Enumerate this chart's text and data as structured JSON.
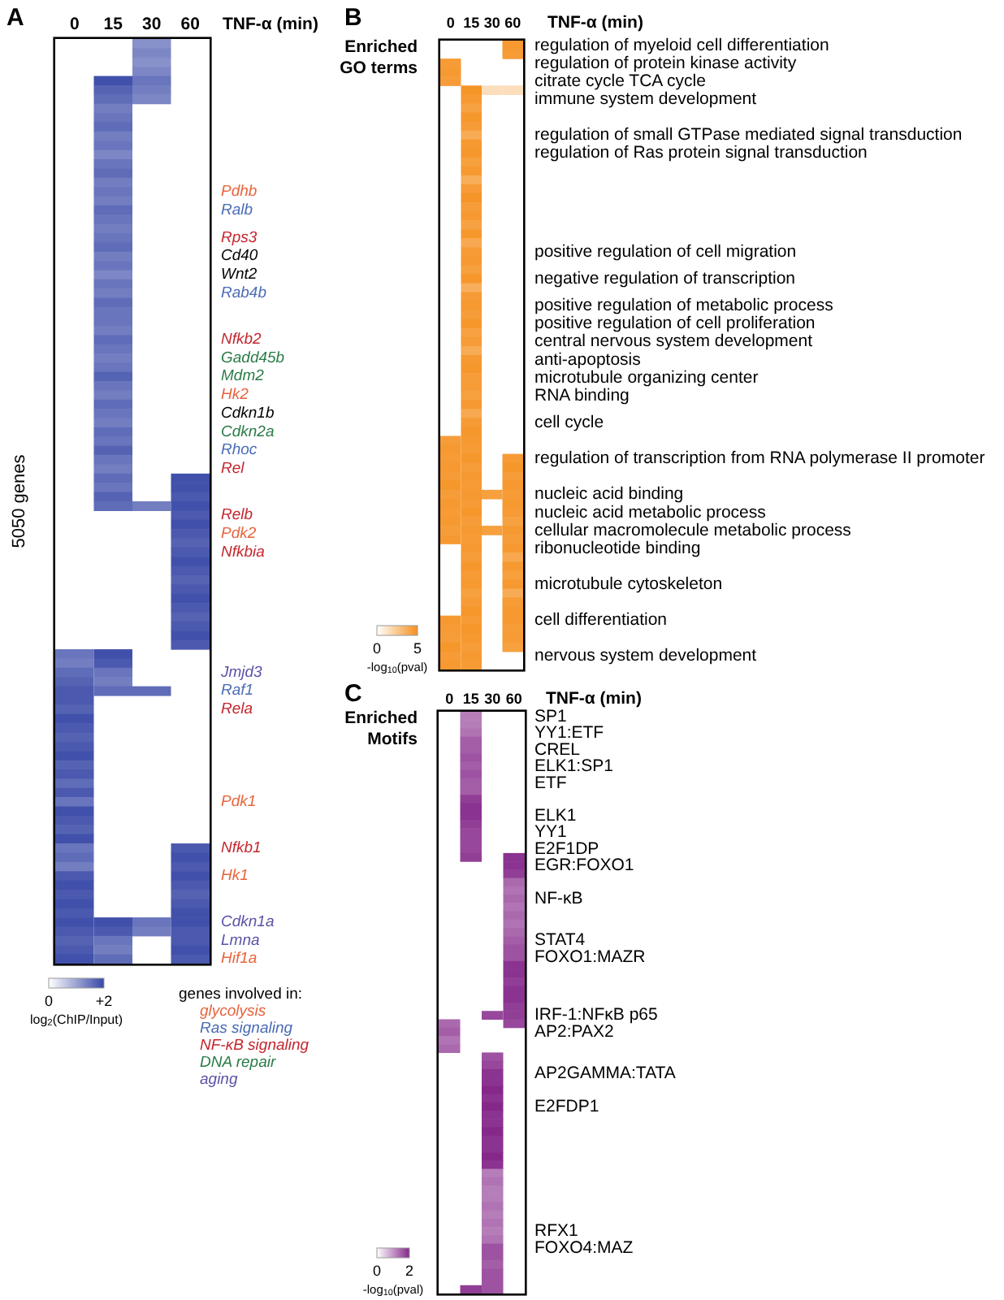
{
  "chart_data": [
    {
      "type": "heatmap",
      "title": "A",
      "xlabel": "TNF-α (min)",
      "ylabel": "5050 genes",
      "categories": [
        "0",
        "15",
        "30",
        "60"
      ],
      "y_categories": [
        null,
        null,
        null,
        null,
        null,
        null,
        null,
        null,
        null,
        null,
        null,
        null,
        null,
        null,
        null,
        null,
        "Pdhb",
        null,
        "Ralb",
        null,
        null,
        "Rps3",
        null,
        "Cd40",
        null,
        "Wnt2",
        null,
        "Rab4b",
        null,
        null,
        null,
        null,
        "Nfkb2",
        null,
        "Gadd45b",
        null,
        "Mdm2",
        null,
        "Hk2",
        null,
        "Cdkn1b",
        null,
        "Cdkn2a",
        null,
        "Rhoc",
        null,
        "Rel",
        null,
        null,
        null,
        null,
        "Relb",
        null,
        "Pdk2",
        null,
        "Nfkbia",
        null,
        null,
        null,
        null,
        null,
        null,
        null,
        null,
        null,
        null,
        null,
        null,
        "Jmjd3",
        null,
        "Raf1",
        null,
        "Rela",
        null,
        null,
        null,
        null,
        null,
        null,
        null,
        null,
        null,
        "Pdk1",
        null,
        null,
        null,
        null,
        "Nfkb1",
        null,
        null,
        "Hk1",
        null,
        null,
        null,
        null,
        "Cdkn1a",
        null,
        "Lmna",
        null,
        "Hif1a"
      ],
      "colors": [
        null,
        null,
        null,
        null,
        null,
        null,
        null,
        null,
        null,
        null,
        null,
        null,
        null,
        null,
        null,
        null,
        "#e8643c",
        null,
        "#4a6bb5",
        null,
        null,
        "#c4262e",
        null,
        "#000000",
        null,
        "#000000",
        null,
        "#4a6bb5",
        null,
        null,
        null,
        null,
        "#c4262e",
        null,
        "#2a7b48",
        null,
        "#2a7b48",
        null,
        "#e8643c",
        null,
        "#000000",
        null,
        "#2a7b48",
        null,
        "#4a6bb5",
        null,
        "#c4262e",
        null,
        null,
        null,
        null,
        "#c4262e",
        null,
        "#e8643c",
        null,
        "#c4262e",
        null,
        null,
        null,
        null,
        null,
        null,
        null,
        null,
        null,
        null,
        null,
        null,
        "#5a52a6",
        null,
        "#4a6bb5",
        null,
        "#c4262e",
        null,
        null,
        null,
        null,
        null,
        null,
        null,
        null,
        null,
        "#e8643c",
        null,
        null,
        null,
        null,
        "#c4262e",
        null,
        null,
        "#e8643c",
        null,
        null,
        null,
        null,
        "#5a52a6",
        null,
        "#5a52a6",
        null,
        "#e8643c"
      ],
      "cells": [
        [
          null,
          null,
          1.2,
          null
        ],
        [
          null,
          null,
          1.3,
          null
        ],
        [
          null,
          null,
          1.2,
          null
        ],
        [
          null,
          null,
          1.3,
          null
        ],
        [
          null,
          1.9,
          1.5,
          null
        ],
        [
          null,
          1.7,
          1.4,
          null
        ],
        [
          null,
          1.6,
          1.3,
          null
        ],
        [
          null,
          1.4,
          null,
          null
        ],
        [
          null,
          1.5,
          null,
          null
        ],
        [
          null,
          1.6,
          null,
          null
        ],
        [
          null,
          1.4,
          null,
          null
        ],
        [
          null,
          1.5,
          null,
          null
        ],
        [
          null,
          1.3,
          null,
          null
        ],
        [
          null,
          1.5,
          null,
          null
        ],
        [
          null,
          1.6,
          null,
          null
        ],
        [
          null,
          1.4,
          null,
          null
        ],
        [
          null,
          1.5,
          null,
          null
        ],
        [
          null,
          1.4,
          null,
          null
        ],
        [
          null,
          1.6,
          null,
          null
        ],
        [
          null,
          1.5,
          null,
          null
        ],
        [
          null,
          1.4,
          null,
          null
        ],
        [
          null,
          1.5,
          null,
          null
        ],
        [
          null,
          1.6,
          null,
          null
        ],
        [
          null,
          1.4,
          null,
          null
        ],
        [
          null,
          1.5,
          null,
          null
        ],
        [
          null,
          1.3,
          null,
          null
        ],
        [
          null,
          1.5,
          null,
          null
        ],
        [
          null,
          1.4,
          null,
          null
        ],
        [
          null,
          1.6,
          null,
          null
        ],
        [
          null,
          1.5,
          null,
          null
        ],
        [
          null,
          1.5,
          null,
          null
        ],
        [
          null,
          1.4,
          null,
          null
        ],
        [
          null,
          1.6,
          null,
          null
        ],
        [
          null,
          1.5,
          null,
          null
        ],
        [
          null,
          1.4,
          null,
          null
        ],
        [
          null,
          1.5,
          null,
          null
        ],
        [
          null,
          1.7,
          null,
          null
        ],
        [
          null,
          1.5,
          null,
          null
        ],
        [
          null,
          1.4,
          null,
          null
        ],
        [
          null,
          1.6,
          null,
          null
        ],
        [
          null,
          1.5,
          null,
          null
        ],
        [
          null,
          1.4,
          null,
          null
        ],
        [
          null,
          1.6,
          null,
          null
        ],
        [
          null,
          1.5,
          null,
          null
        ],
        [
          null,
          1.7,
          null,
          null
        ],
        [
          null,
          1.5,
          null,
          null
        ],
        [
          null,
          1.4,
          null,
          null
        ],
        [
          null,
          1.6,
          null,
          1.9
        ],
        [
          null,
          1.5,
          null,
          1.9
        ],
        [
          null,
          1.7,
          null,
          1.8
        ],
        [
          null,
          1.6,
          1.4,
          1.9
        ],
        [
          null,
          null,
          null,
          1.8
        ],
        [
          null,
          null,
          null,
          1.9
        ],
        [
          null,
          null,
          null,
          1.8
        ],
        [
          null,
          null,
          null,
          1.7
        ],
        [
          null,
          null,
          null,
          1.8
        ],
        [
          null,
          null,
          null,
          1.9
        ],
        [
          null,
          null,
          null,
          1.8
        ],
        [
          null,
          null,
          null,
          1.7
        ],
        [
          null,
          null,
          null,
          1.8
        ],
        [
          null,
          null,
          null,
          1.9
        ],
        [
          null,
          null,
          null,
          1.8
        ],
        [
          null,
          null,
          null,
          1.7
        ],
        [
          null,
          null,
          null,
          1.8
        ],
        [
          null,
          null,
          null,
          1.9
        ],
        [
          null,
          null,
          null,
          1.8
        ],
        [
          1.5,
          1.9,
          null,
          null
        ],
        [
          1.4,
          1.8,
          null,
          null
        ],
        [
          1.6,
          1.5,
          null,
          null
        ],
        [
          1.7,
          1.4,
          null,
          null
        ],
        [
          1.8,
          1.6,
          1.6,
          null
        ],
        [
          1.8,
          null,
          null,
          null
        ],
        [
          1.7,
          null,
          null,
          null
        ],
        [
          1.9,
          null,
          null,
          null
        ],
        [
          1.8,
          null,
          null,
          null
        ],
        [
          1.7,
          null,
          null,
          null
        ],
        [
          1.8,
          null,
          null,
          null
        ],
        [
          1.9,
          null,
          null,
          null
        ],
        [
          1.7,
          null,
          null,
          null
        ],
        [
          1.8,
          null,
          null,
          null
        ],
        [
          1.6,
          null,
          null,
          null
        ],
        [
          1.8,
          null,
          null,
          null
        ],
        [
          1.5,
          null,
          null,
          null
        ],
        [
          1.9,
          null,
          null,
          null
        ],
        [
          1.8,
          null,
          null,
          null
        ],
        [
          1.7,
          null,
          null,
          null
        ],
        [
          1.9,
          null,
          null,
          null
        ],
        [
          1.5,
          null,
          null,
          1.8
        ],
        [
          1.6,
          null,
          null,
          1.9
        ],
        [
          1.4,
          null,
          null,
          1.8
        ],
        [
          1.8,
          null,
          null,
          1.9
        ],
        [
          1.9,
          null,
          null,
          1.8
        ],
        [
          1.8,
          null,
          null,
          1.7
        ],
        [
          1.9,
          null,
          null,
          1.8
        ],
        [
          1.8,
          null,
          null,
          1.9
        ],
        [
          1.9,
          1.9,
          1.5,
          1.9
        ],
        [
          1.8,
          1.8,
          1.4,
          1.8
        ],
        [
          1.7,
          1.5,
          null,
          1.8
        ],
        [
          1.8,
          1.4,
          null,
          1.9
        ],
        [
          1.9,
          1.6,
          null,
          1.8
        ]
      ],
      "color": "#3747a6",
      "clim": [
        0,
        2
      ],
      "cticks": [
        0,
        {
          "value": 2,
          "label": "+2"
        }
      ],
      "clabel": "log$_{2}$(ChIP/Input)"
    },
    {
      "type": "heatmap",
      "title": "B",
      "subtitle": "Enriched GO terms",
      "xlabel": "TNF-α (min)",
      "categories": [
        "0",
        "15",
        "30",
        "60"
      ],
      "y_categories": [
        "regulation of myeloid cell differentiation",
        null,
        "regulation of protein kinase activity",
        null,
        "citrate cycle TCA cycle",
        null,
        "immune system development",
        null,
        null,
        null,
        "regulation of small GTPase mediated signal transduction",
        null,
        "regulation of Ras protein signal transduction",
        null,
        null,
        null,
        null,
        null,
        null,
        null,
        null,
        null,
        null,
        "positive regulation of cell migration",
        null,
        null,
        "negative regulation of transcription",
        null,
        null,
        "positive regulation of metabolic process",
        null,
        "positive regulation of cell proliferation",
        null,
        "central nervous system development",
        null,
        "anti-apoptosis",
        null,
        "microtubule organizing center",
        null,
        "RNA binding",
        null,
        null,
        "cell cycle",
        null,
        null,
        null,
        "regulation of transcription from RNA polymerase II promoter",
        null,
        null,
        null,
        "nucleic acid binding",
        null,
        "nucleic acid metabolic process",
        null,
        "cellular macromolecule metabolic process",
        null,
        "ribonucleotide binding",
        null,
        null,
        null,
        "microtubule cytoskeleton",
        null,
        null,
        null,
        "cell differentiation",
        null,
        null,
        null,
        "nervous system development",
        null
      ],
      "cells": [
        [
          null,
          null,
          null,
          4.6
        ],
        [
          null,
          null,
          null,
          4.5
        ],
        [
          4.5,
          null,
          null,
          null
        ],
        [
          4.6,
          null,
          null,
          null
        ],
        [
          4.4,
          null,
          null,
          null
        ],
        [
          null,
          4.8,
          1.5,
          1.5
        ],
        [
          null,
          4.6,
          null,
          null
        ],
        [
          null,
          4.2,
          null,
          null
        ],
        [
          null,
          4.7,
          null,
          null
        ],
        [
          null,
          4.5,
          null,
          null
        ],
        [
          null,
          3.8,
          null,
          null
        ],
        [
          null,
          4.6,
          null,
          null
        ],
        [
          null,
          4.7,
          null,
          null
        ],
        [
          null,
          4.3,
          null,
          null
        ],
        [
          null,
          4.6,
          null,
          null
        ],
        [
          null,
          3.7,
          null,
          null
        ],
        [
          null,
          4.5,
          null,
          null
        ],
        [
          null,
          4.8,
          null,
          null
        ],
        [
          null,
          4.4,
          null,
          null
        ],
        [
          null,
          4.6,
          null,
          null
        ],
        [
          null,
          4.2,
          null,
          null
        ],
        [
          null,
          4.7,
          null,
          null
        ],
        [
          null,
          3.9,
          null,
          null
        ],
        [
          null,
          4.5,
          null,
          null
        ],
        [
          null,
          4.6,
          null,
          null
        ],
        [
          null,
          4.3,
          null,
          null
        ],
        [
          null,
          4.7,
          null,
          null
        ],
        [
          null,
          3.6,
          null,
          null
        ],
        [
          null,
          4.5,
          null,
          null
        ],
        [
          null,
          4.6,
          null,
          null
        ],
        [
          null,
          4.4,
          null,
          null
        ],
        [
          null,
          4.7,
          null,
          null
        ],
        [
          null,
          4.2,
          null,
          null
        ],
        [
          null,
          4.5,
          null,
          null
        ],
        [
          null,
          3.8,
          null,
          null
        ],
        [
          null,
          4.6,
          null,
          null
        ],
        [
          null,
          4.7,
          null,
          null
        ],
        [
          null,
          4.4,
          null,
          null
        ],
        [
          null,
          4.5,
          null,
          null
        ],
        [
          null,
          4.3,
          null,
          null
        ],
        [
          null,
          4.6,
          null,
          null
        ],
        [
          null,
          3.9,
          null,
          null
        ],
        [
          null,
          4.5,
          null,
          null
        ],
        [
          null,
          4.7,
          null,
          null
        ],
        [
          4.4,
          4.6,
          null,
          null
        ],
        [
          4.6,
          4.5,
          null,
          null
        ],
        [
          4.5,
          4.7,
          null,
          4.5
        ],
        [
          4.6,
          4.4,
          null,
          4.7
        ],
        [
          4.5,
          4.6,
          null,
          4.4
        ],
        [
          4.7,
          4.5,
          null,
          4.6
        ],
        [
          4.4,
          4.6,
          4.3,
          4.5
        ],
        [
          4.6,
          4.5,
          null,
          4.6
        ],
        [
          4.5,
          4.7,
          null,
          4.5
        ],
        [
          4.6,
          4.4,
          null,
          4.2
        ],
        [
          4.4,
          4.6,
          4.3,
          4.6
        ],
        [
          4.6,
          4.5,
          null,
          4.4
        ],
        [
          null,
          4.6,
          null,
          4.6
        ],
        [
          null,
          4.4,
          null,
          3.9
        ],
        [
          null,
          4.7,
          null,
          4.6
        ],
        [
          null,
          4.5,
          null,
          4.3
        ],
        [
          null,
          4.6,
          null,
          4.6
        ],
        [
          null,
          4.3,
          null,
          3.8
        ],
        [
          null,
          4.5,
          null,
          4.5
        ],
        [
          null,
          4.7,
          null,
          4.6
        ],
        [
          4.6,
          4.5,
          null,
          4.6
        ],
        [
          4.5,
          4.7,
          null,
          4.4
        ],
        [
          4.4,
          4.6,
          null,
          4.5
        ],
        [
          4.7,
          4.4,
          null,
          4.3
        ],
        [
          4.5,
          4.6,
          null,
          null
        ],
        [
          4.6,
          4.5,
          null,
          null
        ]
      ],
      "color": "#f5901e",
      "clim": [
        0,
        5
      ],
      "cticks": [
        0,
        5
      ],
      "clabel": "-log$_{10}$(pval)"
    },
    {
      "type": "heatmap",
      "title": "C",
      "subtitle": "Enriched Motifs",
      "xlabel": "TNF-α (min)",
      "categories": [
        "0",
        "15",
        "30",
        "60"
      ],
      "y_categories": [
        "SP1",
        null,
        "YY1:ETF",
        null,
        "CREL",
        null,
        "ELK1:SP1",
        null,
        "ETF",
        null,
        null,
        null,
        "ELK1",
        null,
        "YY1",
        null,
        "E2F1DP",
        null,
        "EGR:FOXO1",
        null,
        null,
        null,
        "NF-κB",
        null,
        null,
        null,
        null,
        "STAT4",
        null,
        "FOXO1:MAZR",
        null,
        null,
        null,
        null,
        null,
        null,
        "IRF-1:NFκB p65",
        null,
        "AP2:PAX2",
        null,
        null,
        null,
        null,
        "AP2GAMMA:TATA",
        null,
        null,
        null,
        "E2FDP1",
        null,
        null,
        null,
        null,
        null,
        null,
        null,
        null,
        null,
        null,
        null,
        null,
        null,
        null,
        "RFX1",
        null,
        "FOXO4:MAZ",
        null,
        null,
        null,
        null,
        null
      ],
      "cells": [
        [
          null,
          1.2,
          null,
          null
        ],
        [
          null,
          1.2,
          null,
          null
        ],
        [
          null,
          1.3,
          null,
          null
        ],
        [
          null,
          1.5,
          null,
          null
        ],
        [
          null,
          1.5,
          null,
          null
        ],
        [
          null,
          1.6,
          null,
          null
        ],
        [
          null,
          1.5,
          null,
          null
        ],
        [
          null,
          1.6,
          null,
          null
        ],
        [
          null,
          1.5,
          null,
          null
        ],
        [
          null,
          1.5,
          null,
          null
        ],
        [
          null,
          1.8,
          null,
          null
        ],
        [
          null,
          1.9,
          null,
          null
        ],
        [
          null,
          1.9,
          null,
          null
        ],
        [
          null,
          1.8,
          null,
          null
        ],
        [
          null,
          1.7,
          null,
          null
        ],
        [
          null,
          1.7,
          null,
          null
        ],
        [
          null,
          1.7,
          null,
          null
        ],
        [
          null,
          1.8,
          null,
          1.9
        ],
        [
          null,
          null,
          null,
          1.9
        ],
        [
          null,
          null,
          null,
          1.8
        ],
        [
          null,
          null,
          null,
          1.4
        ],
        [
          null,
          null,
          null,
          1.3
        ],
        [
          null,
          null,
          null,
          1.4
        ],
        [
          null,
          null,
          null,
          1.3
        ],
        [
          null,
          null,
          null,
          1.4
        ],
        [
          null,
          null,
          null,
          1.3
        ],
        [
          null,
          null,
          null,
          1.4
        ],
        [
          null,
          null,
          null,
          1.5
        ],
        [
          null,
          null,
          null,
          1.6
        ],
        [
          null,
          null,
          null,
          1.6
        ],
        [
          null,
          null,
          null,
          1.9
        ],
        [
          null,
          null,
          null,
          1.9
        ],
        [
          null,
          null,
          null,
          1.8
        ],
        [
          null,
          null,
          null,
          1.9
        ],
        [
          null,
          null,
          null,
          1.9
        ],
        [
          null,
          null,
          null,
          1.8
        ],
        [
          null,
          null,
          1.7,
          1.8
        ],
        [
          1.4,
          null,
          null,
          1.7
        ],
        [
          1.5,
          null,
          null,
          null
        ],
        [
          1.3,
          null,
          null,
          null
        ],
        [
          1.4,
          null,
          null,
          null
        ],
        [
          null,
          null,
          1.6,
          null
        ],
        [
          null,
          null,
          1.7,
          null
        ],
        [
          null,
          null,
          1.9,
          null
        ],
        [
          null,
          null,
          1.9,
          null
        ],
        [
          null,
          null,
          2,
          null
        ],
        [
          null,
          null,
          1.9,
          null
        ],
        [
          null,
          null,
          2,
          null
        ],
        [
          null,
          null,
          1.9,
          null
        ],
        [
          null,
          null,
          1.9,
          null
        ],
        [
          null,
          null,
          2,
          null
        ],
        [
          null,
          null,
          1.9,
          null
        ],
        [
          null,
          null,
          1.9,
          null
        ],
        [
          null,
          null,
          2,
          null
        ],
        [
          null,
          null,
          1.9,
          null
        ],
        [
          null,
          null,
          1.2,
          null
        ],
        [
          null,
          null,
          1.3,
          null
        ],
        [
          null,
          null,
          1.2,
          null
        ],
        [
          null,
          null,
          1.2,
          null
        ],
        [
          null,
          null,
          1.3,
          null
        ],
        [
          null,
          null,
          1.2,
          null
        ],
        [
          null,
          null,
          1.3,
          null
        ],
        [
          null,
          null,
          1.2,
          null
        ],
        [
          null,
          null,
          1.3,
          null
        ],
        [
          null,
          null,
          1.6,
          null
        ],
        [
          null,
          null,
          1.6,
          null
        ],
        [
          null,
          null,
          1.5,
          null
        ],
        [
          null,
          null,
          1.6,
          null
        ],
        [
          null,
          null,
          1.6,
          null
        ],
        [
          null,
          1.8,
          1.6,
          null
        ]
      ],
      "color": "#85288a",
      "clim": [
        0,
        2
      ],
      "cticks": [
        0,
        2
      ],
      "clabel": "-log$_{10}$(pval)"
    },
    {
      "type": "other",
      "title": "genes involved in:",
      "categories": [
        "glycolysis",
        "Ras signaling",
        "NF-κB signaling",
        "DNA repair",
        "aging"
      ],
      "colors": [
        "#e8643c",
        "#4a6bb5",
        "#c4262e",
        "#2a7b48",
        "#5a52a6"
      ]
    }
  ]
}
